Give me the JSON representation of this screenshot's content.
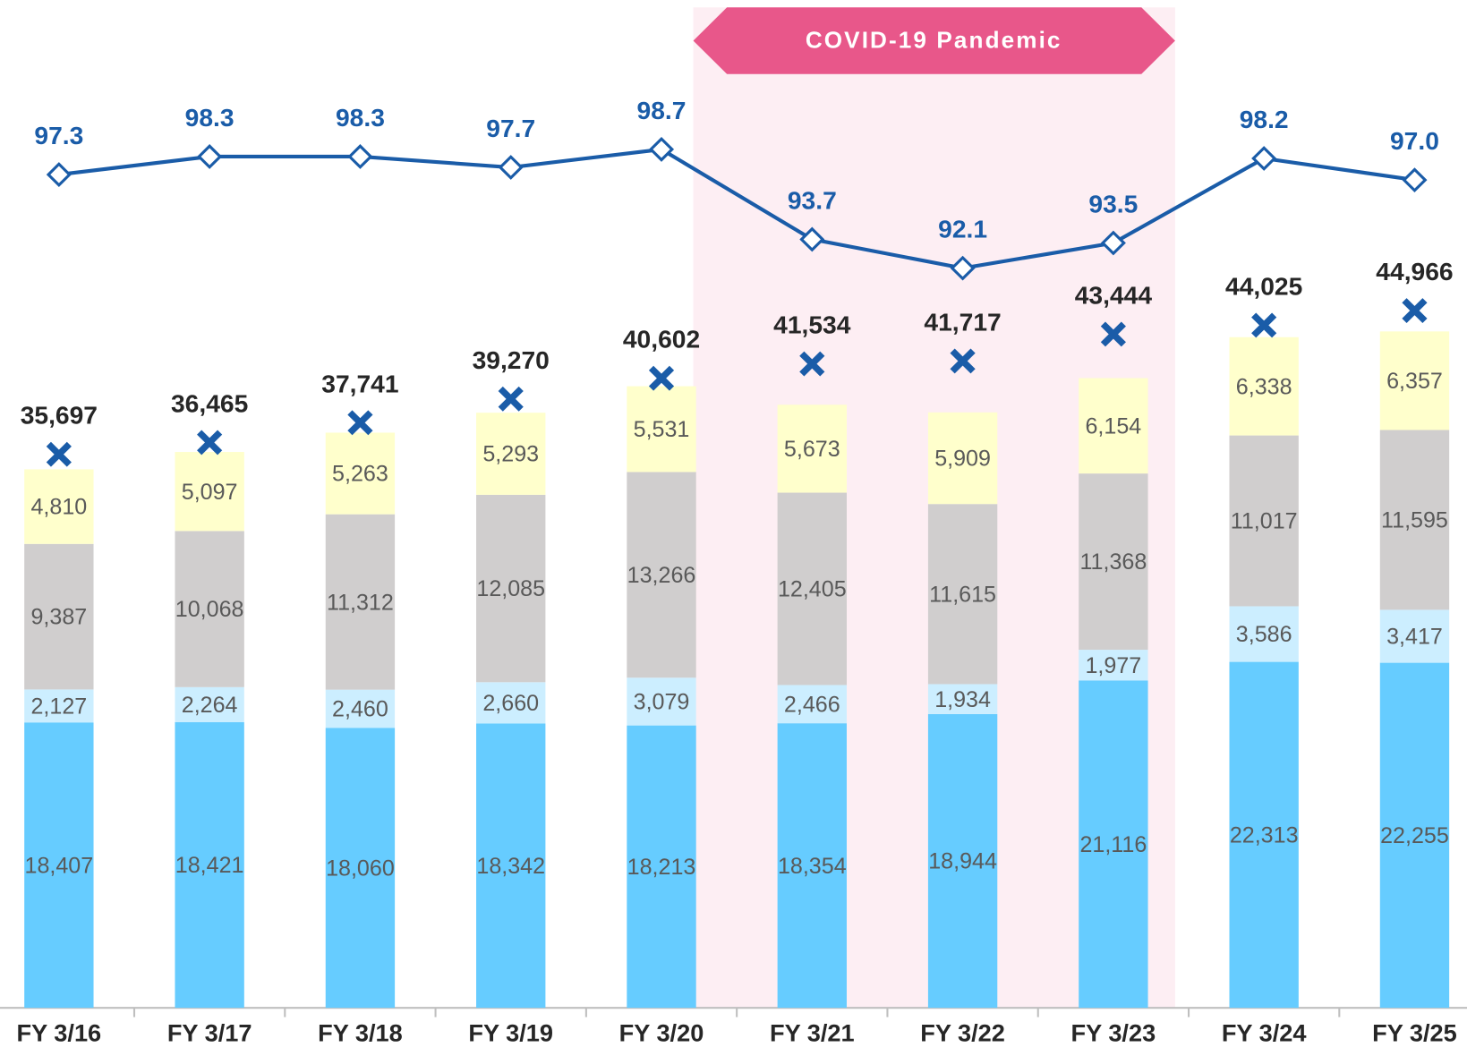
{
  "chart_data": {
    "type": "stacked-bar-line",
    "categories": [
      "FY 3/16",
      "FY 3/17",
      "FY 3/18",
      "FY 3/19",
      "FY 3/20",
      "FY 3/21",
      "FY 3/22",
      "FY 3/23",
      "FY 3/24",
      "FY 3/25"
    ],
    "annotation": "COVID-19 Pandemic",
    "ylim": [
      0,
      65000
    ],
    "y2lim": [
      51,
      107
    ],
    "series": [
      {
        "color": "#66ccff",
        "values": [
          18407,
          18421,
          18060,
          18342,
          18213,
          18354,
          18944,
          21116,
          22313,
          22255
        ],
        "value_labels": [
          "18,407",
          "18,421",
          "18,060",
          "18,342",
          "18,213",
          "18,354",
          "18,944",
          "21,116",
          "22,313",
          "22,255"
        ]
      },
      {
        "color": "#cceeff",
        "values": [
          2127,
          2264,
          2460,
          2660,
          3079,
          2466,
          1934,
          1977,
          3586,
          3417
        ],
        "value_labels": [
          "2,127",
          "2,264",
          "2,460",
          "2,660",
          "3,079",
          "2,466",
          "1,934",
          "1,977",
          "3,586",
          "3,417"
        ]
      },
      {
        "color": "#d0cece",
        "values": [
          9387,
          10068,
          11312,
          12085,
          13266,
          12405,
          11615,
          11368,
          11017,
          11595
        ],
        "value_labels": [
          "9,387",
          "10,068",
          "11,312",
          "12,085",
          "13,266",
          "12,405",
          "11,615",
          "11,368",
          "11,017",
          "11,595"
        ]
      },
      {
        "color": "#ffffcc",
        "values": [
          4810,
          5097,
          5263,
          5293,
          5531,
          5673,
          5909,
          6154,
          6338,
          6357
        ],
        "value_labels": [
          "4,810",
          "5,097",
          "5,263",
          "5,293",
          "5,531",
          "5,673",
          "5,909",
          "6,154",
          "6,338",
          "6,357"
        ]
      },
      {
        "color": "#1a5ca8",
        "marker": "x",
        "values": [
          35697,
          36465,
          37741,
          39270,
          40602,
          41534,
          41717,
          43444,
          44025,
          44966
        ],
        "value_labels": [
          "35,697",
          "36,465",
          "37,741",
          "39,270",
          "40,602",
          "41,534",
          "41,717",
          "43,444",
          "44,025",
          "44,966"
        ]
      },
      {
        "color": "#1a5ca8",
        "axis": "y2",
        "marker": "diamond",
        "values": [
          97.3,
          98.3,
          98.3,
          97.7,
          98.7,
          93.7,
          92.1,
          93.5,
          98.2,
          97.0
        ],
        "value_labels": [
          "97.3",
          "98.3",
          "98.3",
          "97.7",
          "98.7",
          "93.7",
          "92.1",
          "93.5",
          "98.2",
          "97.0"
        ]
      }
    ]
  }
}
